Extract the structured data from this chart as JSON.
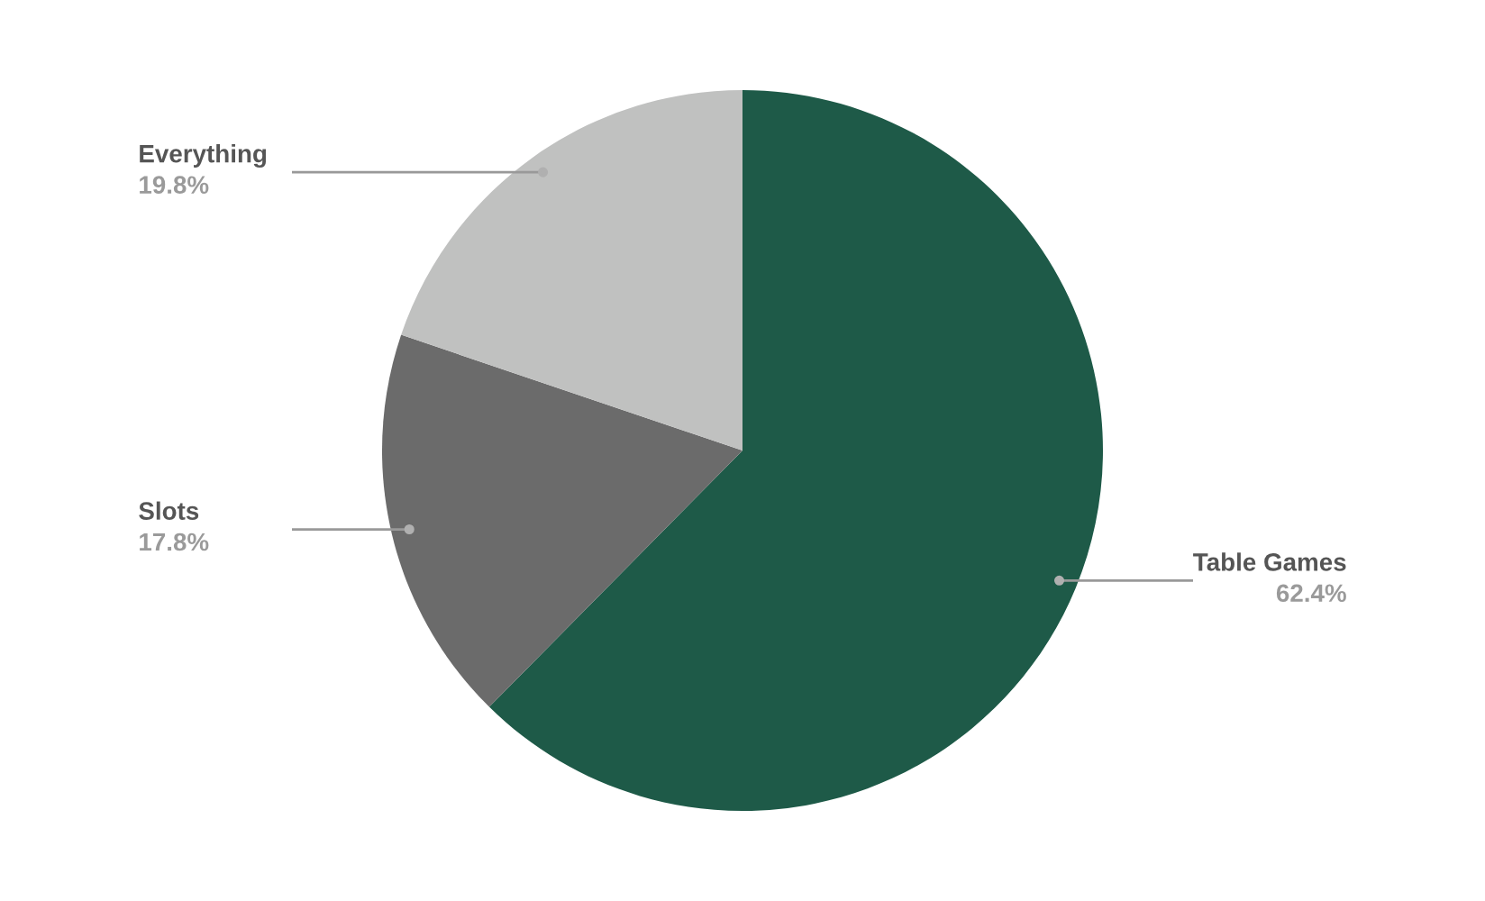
{
  "chart_data": {
    "type": "pie",
    "categories": [
      "Table Games",
      "Slots",
      "Everything"
    ],
    "values": [
      62.4,
      17.8,
      19.8
    ],
    "value_labels": [
      "62.4%",
      "17.8%",
      "19.8%"
    ],
    "colors": [
      "#1e5a48",
      "#6b6b6b",
      "#c0c1c0"
    ],
    "legend": false
  }
}
